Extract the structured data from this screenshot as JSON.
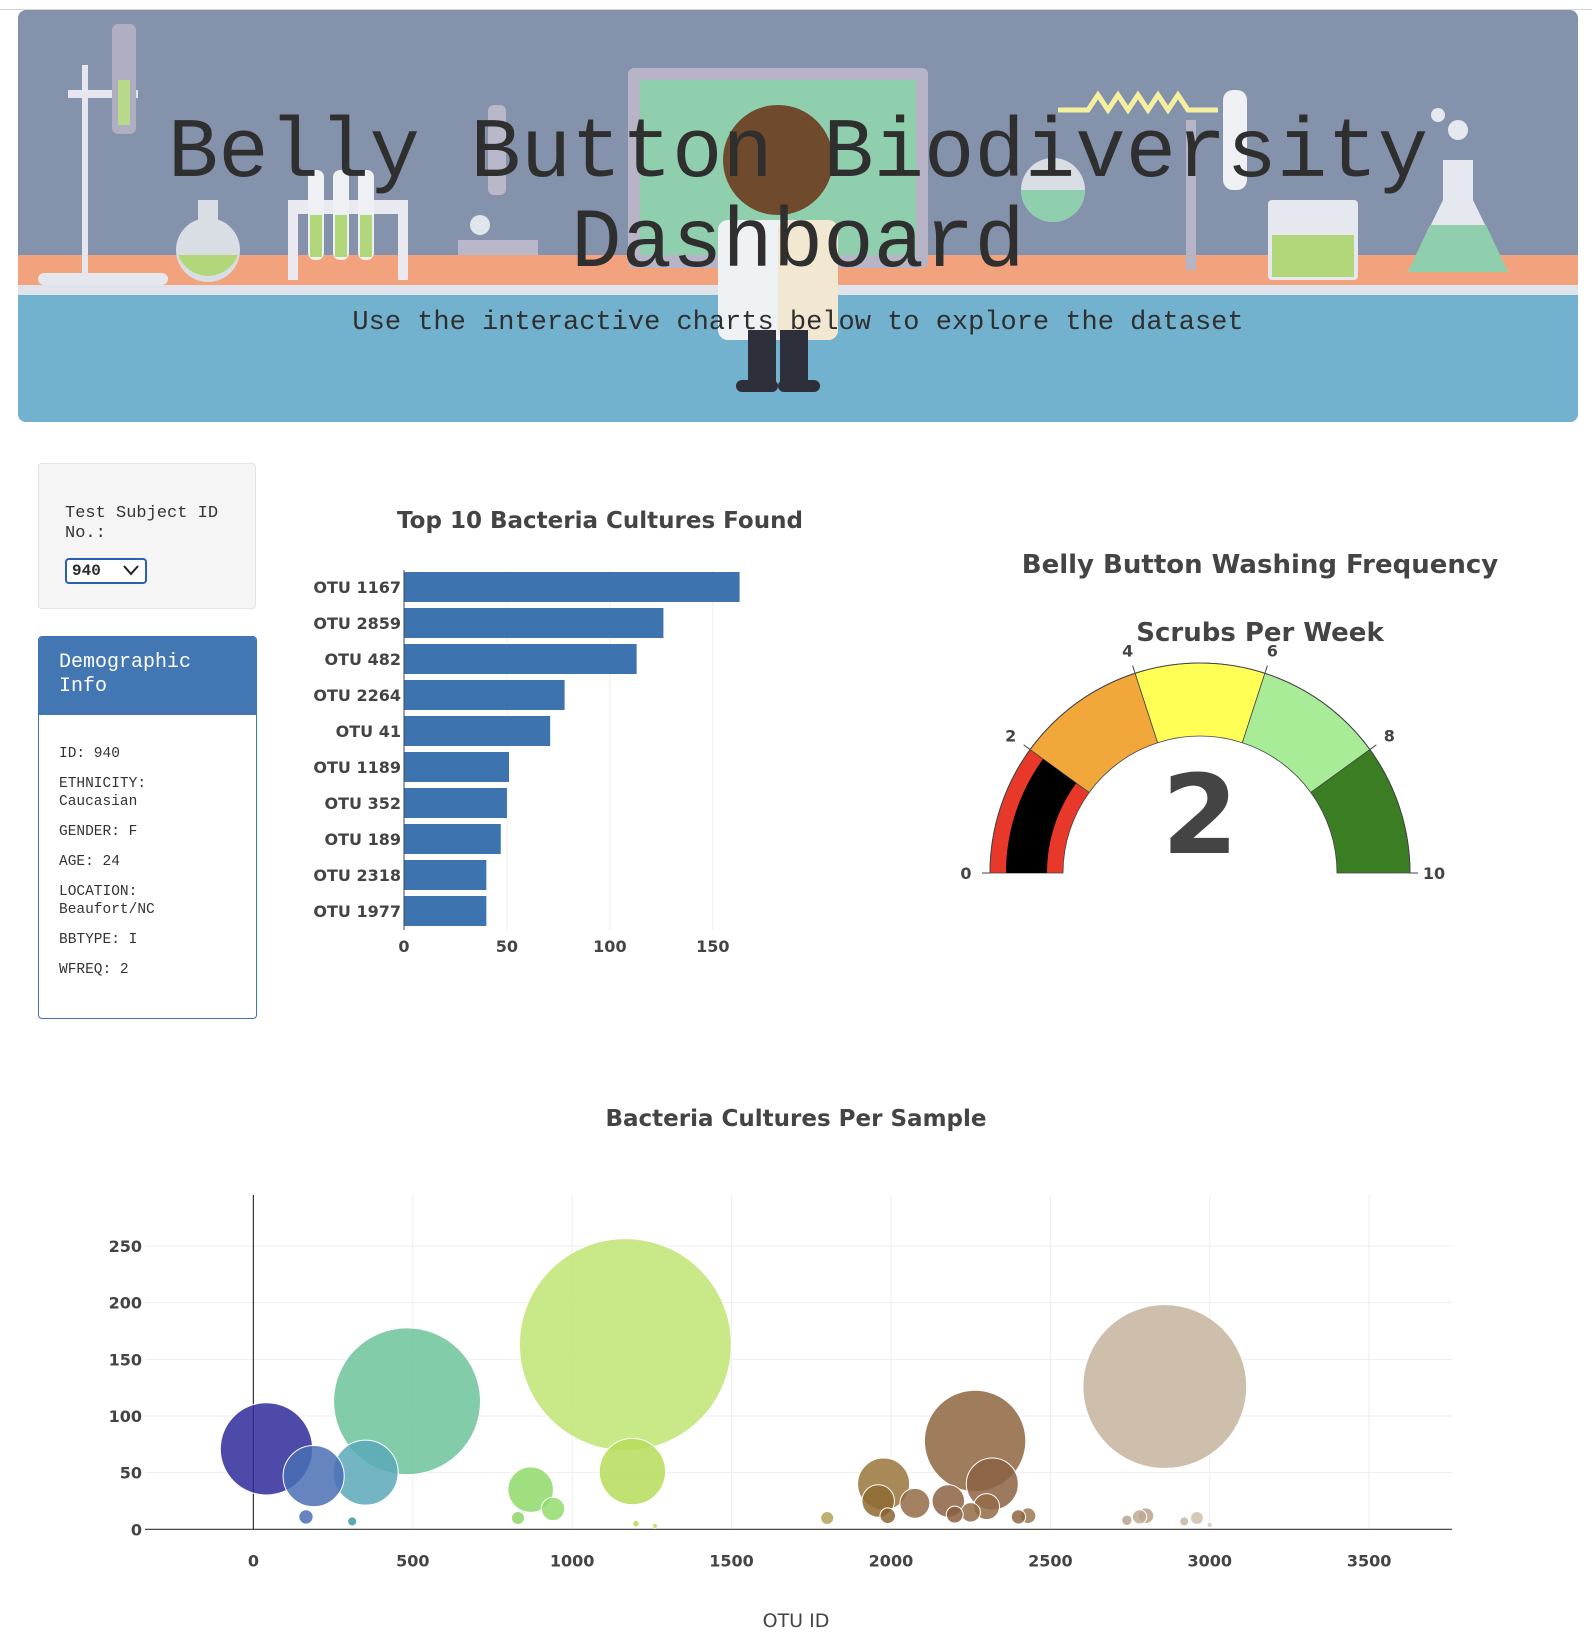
{
  "header": {
    "title": "Belly Button Biodiversity Dashboard",
    "subtitle": "Use the interactive charts below to explore the dataset"
  },
  "selector": {
    "label": "Test Subject ID No.:",
    "selected": "940"
  },
  "demographics": {
    "heading": "Demographic Info",
    "rows": [
      "ID: 940",
      "ETHNICITY: Caucasian",
      "GENDER: F",
      "AGE: 24",
      "LOCATION: Beaufort/NC",
      "BBTYPE: I",
      "WFREQ: 2"
    ]
  },
  "chart_data": [
    {
      "type": "bar",
      "orientation": "horizontal",
      "title": "Top 10 Bacteria Cultures Found",
      "categories": [
        "OTU 1167",
        "OTU 2859",
        "OTU 482",
        "OTU 2264",
        "OTU 41",
        "OTU 1189",
        "OTU 352",
        "OTU 189",
        "OTU 2318",
        "OTU 1977"
      ],
      "values": [
        163,
        126,
        113,
        78,
        71,
        51,
        50,
        47,
        40,
        40
      ],
      "xlim": [
        0,
        170
      ],
      "xticks": [
        0,
        50,
        100,
        150
      ],
      "color": "#3d74b0",
      "grid": true
    },
    {
      "type": "gauge",
      "title": "Belly Button Washing Frequency",
      "subtitle": "Scrubs Per Week",
      "value": 2,
      "range": [
        0,
        10
      ],
      "ticks": [
        0,
        2,
        4,
        6,
        8,
        10
      ],
      "steps": [
        {
          "range": [
            0,
            2
          ],
          "color": "#e8382a"
        },
        {
          "range": [
            2,
            4
          ],
          "color": "#f2a73b"
        },
        {
          "range": [
            4,
            6
          ],
          "color": "#ffff55"
        },
        {
          "range": [
            6,
            8
          ],
          "color": "#a8ec98"
        },
        {
          "range": [
            8,
            10
          ],
          "color": "#3b7d22"
        }
      ],
      "bar_color": "#000000"
    },
    {
      "type": "scatter",
      "mode": "bubble",
      "title": "Bacteria Cultures Per Sample",
      "xlabel": "OTU ID",
      "ylabel": "",
      "xlim": [
        -340,
        3760
      ],
      "ylim": [
        -5,
        295
      ],
      "xticks": [
        0,
        500,
        1000,
        1500,
        2000,
        2500,
        3000,
        3500
      ],
      "yticks": [
        0,
        50,
        100,
        150,
        200,
        250
      ],
      "grid": true,
      "points": [
        {
          "x": 41,
          "y": 71,
          "color": "#2f2a9a"
        },
        {
          "x": 189,
          "y": 47,
          "color": "#4a6eb5"
        },
        {
          "x": 352,
          "y": 50,
          "color": "#5aa8b8"
        },
        {
          "x": 165,
          "y": 11,
          "color": "#4a6eb5"
        },
        {
          "x": 310,
          "y": 7,
          "color": "#3d9aa3"
        },
        {
          "x": 482,
          "y": 113,
          "color": "#6cc39a"
        },
        {
          "x": 1167,
          "y": 163,
          "color": "#bfe473"
        },
        {
          "x": 1189,
          "y": 51,
          "color": "#b6dd5a"
        },
        {
          "x": 870,
          "y": 35,
          "color": "#8fd968"
        },
        {
          "x": 940,
          "y": 18,
          "color": "#93dc6c"
        },
        {
          "x": 830,
          "y": 10,
          "color": "#8ed565"
        },
        {
          "x": 1200,
          "y": 5,
          "color": "#b6dd5a"
        },
        {
          "x": 1260,
          "y": 3,
          "color": "#c7d55a"
        },
        {
          "x": 1800,
          "y": 10,
          "color": "#b3a25a"
        },
        {
          "x": 1977,
          "y": 40,
          "color": "#98753a"
        },
        {
          "x": 1960,
          "y": 25,
          "color": "#8f6a32"
        },
        {
          "x": 1990,
          "y": 12,
          "color": "#8a6430"
        },
        {
          "x": 2075,
          "y": 23,
          "color": "#946b45"
        },
        {
          "x": 2264,
          "y": 78,
          "color": "#8e6540"
        },
        {
          "x": 2318,
          "y": 40,
          "color": "#8c6244"
        },
        {
          "x": 2180,
          "y": 25,
          "color": "#8c6244"
        },
        {
          "x": 2200,
          "y": 13,
          "color": "#8a5f3e"
        },
        {
          "x": 2250,
          "y": 15,
          "color": "#946b48"
        },
        {
          "x": 2300,
          "y": 20,
          "color": "#946b48"
        },
        {
          "x": 2400,
          "y": 11,
          "color": "#8f6644"
        },
        {
          "x": 2430,
          "y": 12,
          "color": "#9b7754"
        },
        {
          "x": 2859,
          "y": 126,
          "color": "#c5b39e"
        },
        {
          "x": 2800,
          "y": 12,
          "color": "#b9a38c"
        },
        {
          "x": 2740,
          "y": 8,
          "color": "#b9a38c"
        },
        {
          "x": 2780,
          "y": 11,
          "color": "#c0ab95"
        },
        {
          "x": 2920,
          "y": 7,
          "color": "#c5b6a4"
        },
        {
          "x": 2960,
          "y": 10,
          "color": "#cfc0ae"
        },
        {
          "x": 3000,
          "y": 4,
          "color": "#d3c6b7"
        }
      ]
    }
  ]
}
